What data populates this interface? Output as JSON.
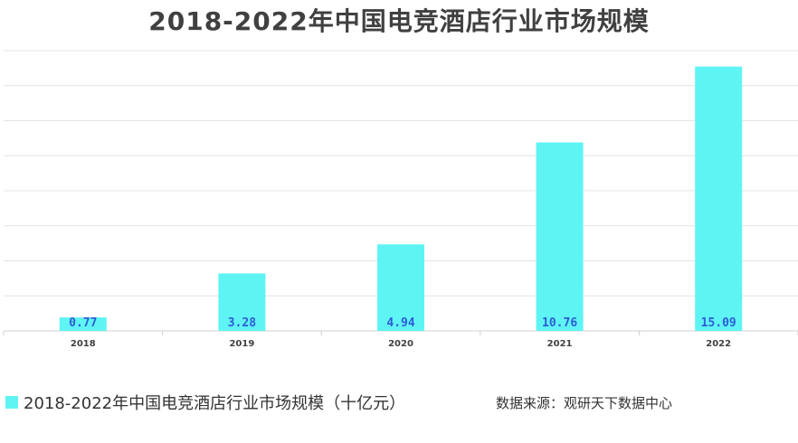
{
  "chart_data": {
    "type": "bar",
    "title": "2018-2022年中国电竞酒店行业市场规模",
    "categories": [
      "2018",
      "2019",
      "2020",
      "2021",
      "2022"
    ],
    "series": [
      {
        "name": "2018-2022年中国电竞酒店行业市场规模（十亿元）",
        "values": [
          0.77,
          3.28,
          4.94,
          10.76,
          15.09
        ],
        "labels": [
          "0.77",
          "3.28",
          "4.94",
          "10.76",
          "15.09"
        ]
      }
    ],
    "ylim": [
      0,
      16
    ],
    "grid": true,
    "legend_position": "bottom-left",
    "bar_color": "#5EF4F4",
    "label_color": "#2E5BD6",
    "source": "数据来源：观研天下数据中心"
  }
}
